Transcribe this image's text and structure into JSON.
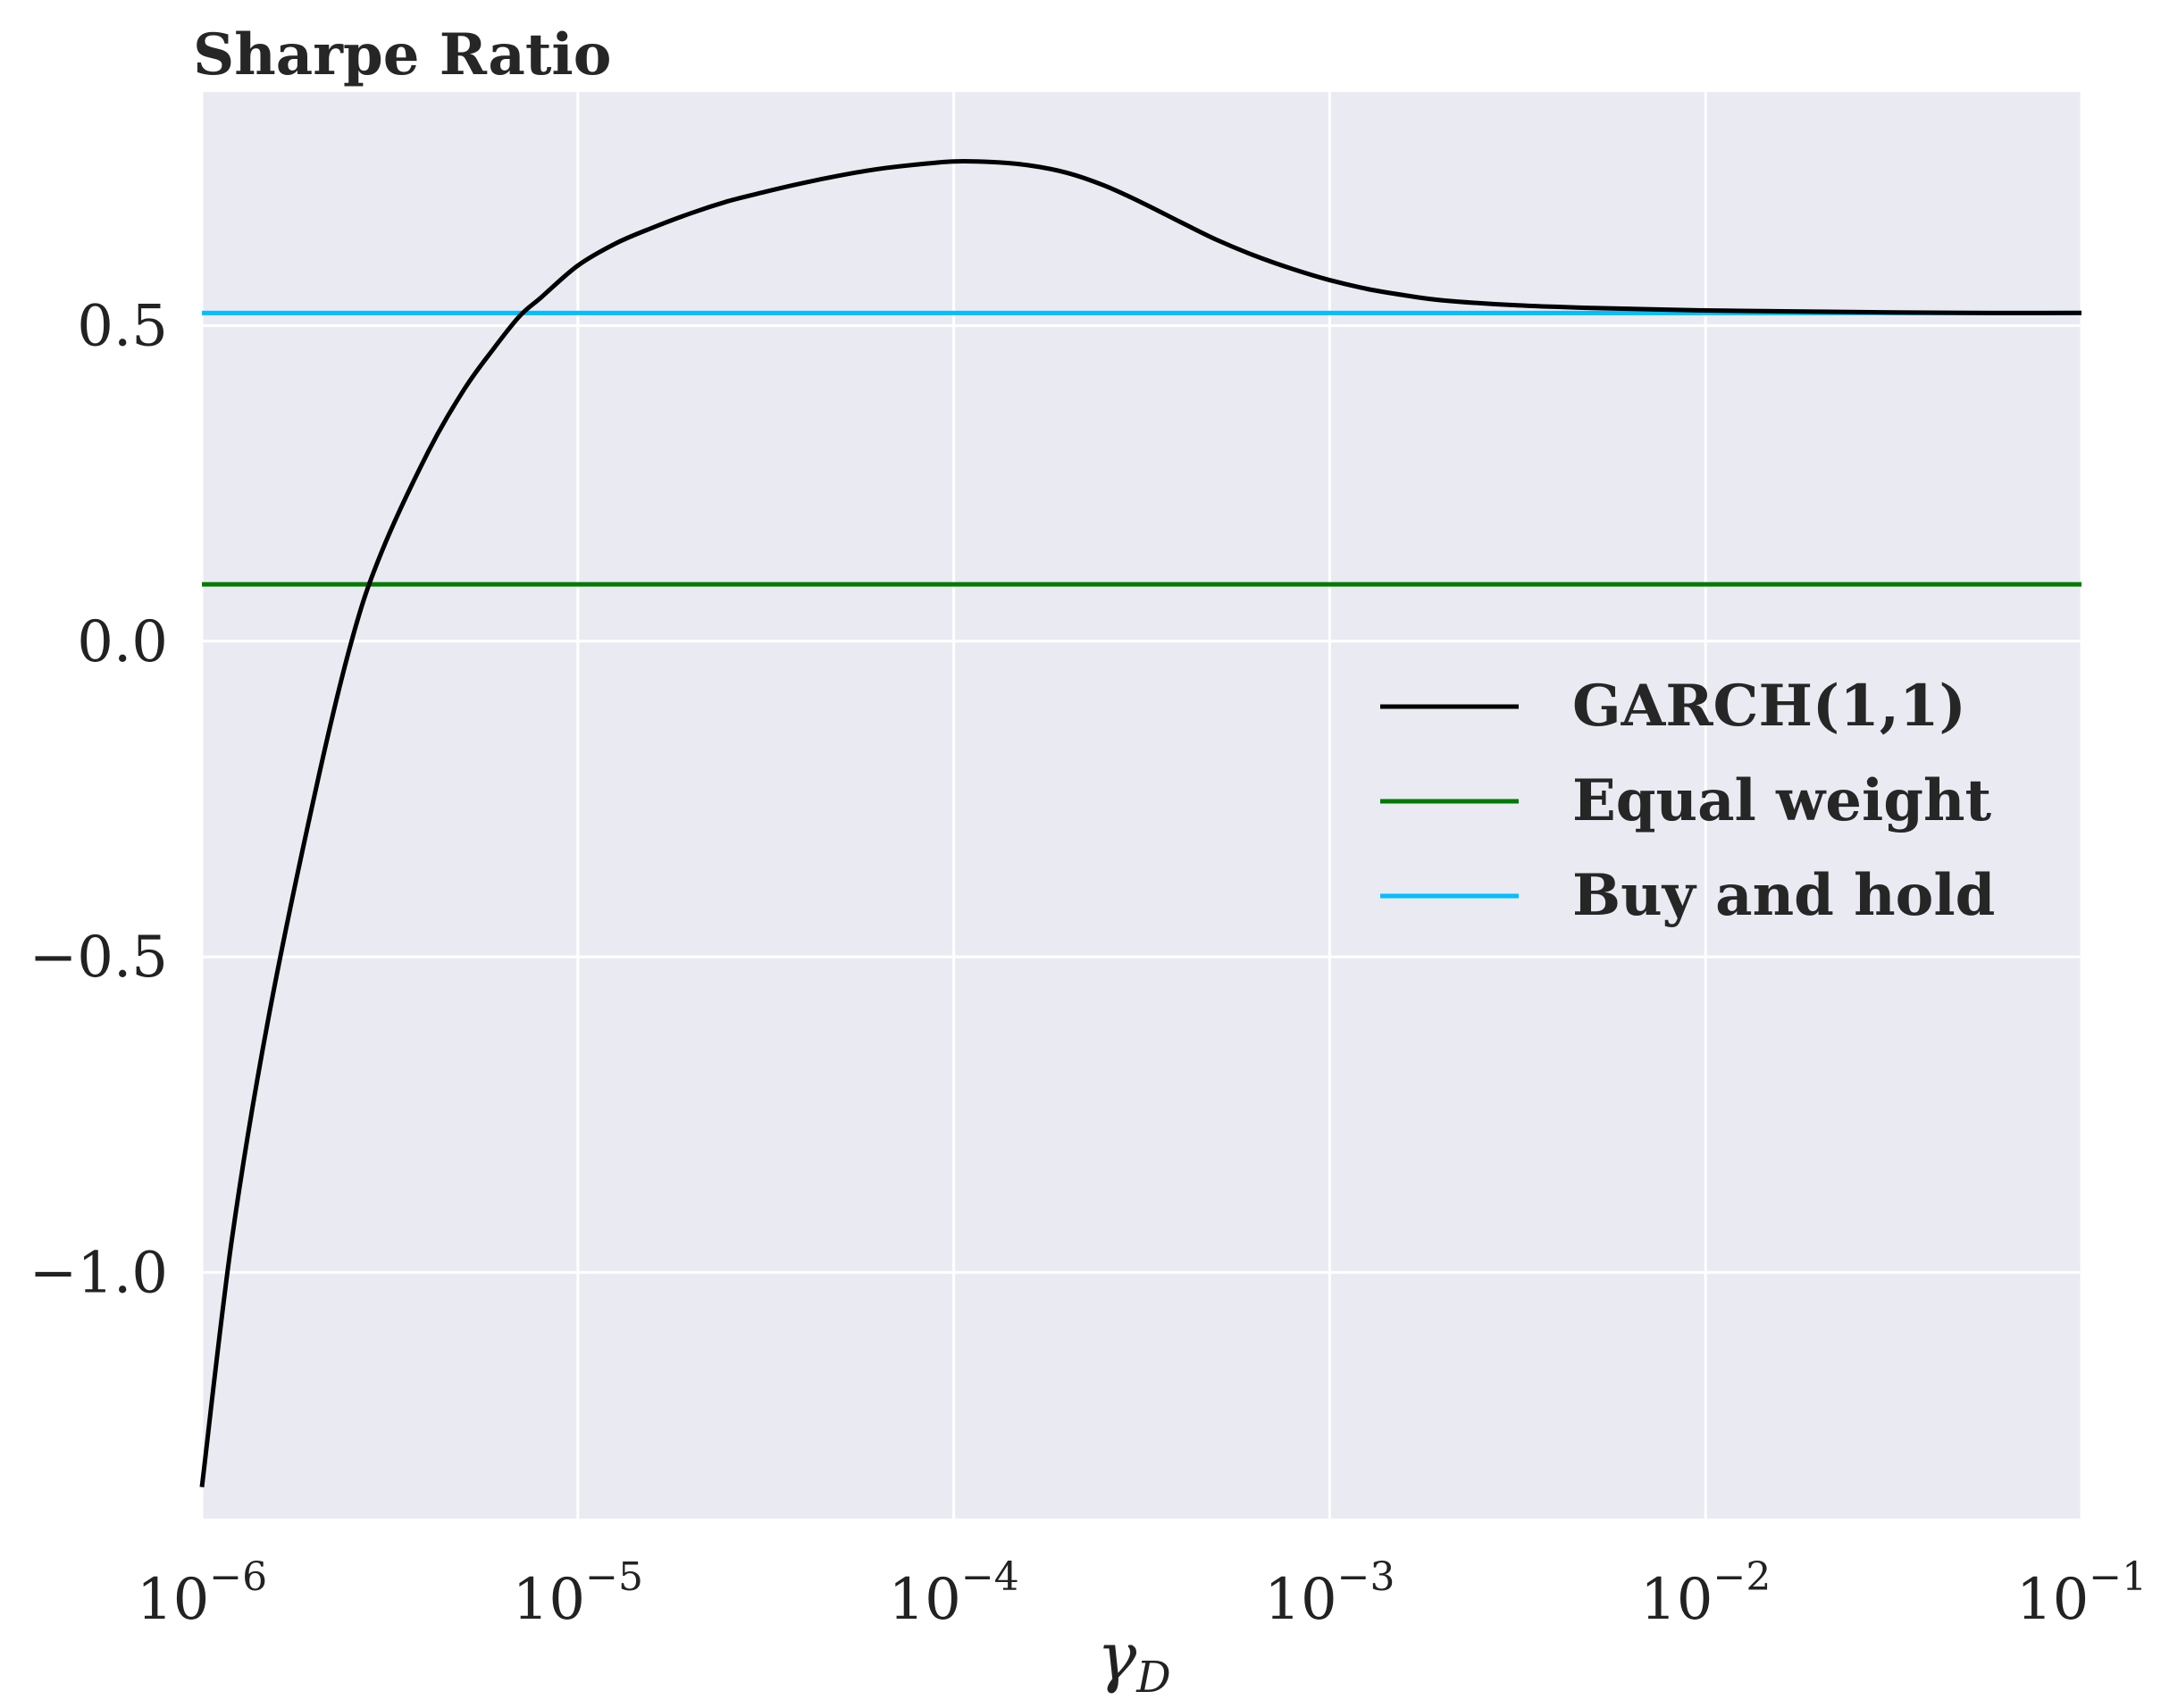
{
  "chart_data": {
    "type": "line",
    "title": "Sharpe Ratio",
    "xlabel": "γ",
    "xlabel_subscript": "D",
    "ylabel": "",
    "x_scale": "log",
    "xlim": [
      1e-06,
      0.1
    ],
    "ylim": [
      -1.39,
      0.87
    ],
    "x_ticks": [
      {
        "value": 1e-06,
        "base": "10",
        "exp": "−6"
      },
      {
        "value": 1e-05,
        "base": "10",
        "exp": "−5"
      },
      {
        "value": 0.0001,
        "base": "10",
        "exp": "−4"
      },
      {
        "value": 0.001,
        "base": "10",
        "exp": "−3"
      },
      {
        "value": 0.01,
        "base": "10",
        "exp": "−2"
      },
      {
        "value": 0.1,
        "base": "10",
        "exp": "−1"
      }
    ],
    "y_ticks": [
      {
        "value": 0.5,
        "label": "0.5"
      },
      {
        "value": 0.0,
        "label": "0.0"
      },
      {
        "value": -0.5,
        "label": "−0.5"
      },
      {
        "value": -1.0,
        "label": "−1.0"
      }
    ],
    "grid": true,
    "legend_position": "center-right",
    "series": [
      {
        "name": "GARCH(1,1)",
        "color": "#000000",
        "kind": "curve",
        "x": [
          1e-06,
          1.2e-06,
          1.5e-06,
          2e-06,
          2.5e-06,
          3e-06,
          4e-06,
          5e-06,
          6e-06,
          7e-06,
          8e-06,
          1e-05,
          1.26e-05,
          1.58e-05,
          2e-05,
          2.51e-05,
          3.16e-05,
          3.98e-05,
          5e-05,
          6.3e-05,
          7.94e-05,
          0.0001,
          0.000126,
          0.000158,
          0.0002,
          0.000251,
          0.000316,
          0.000398,
          0.0005,
          0.00063,
          0.000794,
          0.001,
          0.00126,
          0.00158,
          0.002,
          0.00316,
          0.005,
          0.01,
          0.02,
          0.05,
          0.1
        ],
        "y": [
          -1.34,
          -0.95,
          -0.6,
          -0.24,
          0.0,
          0.14,
          0.3,
          0.4,
          0.465,
          0.515,
          0.545,
          0.595,
          0.63,
          0.655,
          0.678,
          0.697,
          0.712,
          0.726,
          0.738,
          0.748,
          0.755,
          0.76,
          0.759,
          0.754,
          0.742,
          0.722,
          0.695,
          0.665,
          0.636,
          0.611,
          0.59,
          0.572,
          0.558,
          0.548,
          0.54,
          0.532,
          0.528,
          0.524,
          0.522,
          0.52,
          0.52
        ]
      },
      {
        "name": "Equal weight",
        "color": "#007a00",
        "kind": "hline",
        "y": 0.09
      },
      {
        "name": "Buy and hold",
        "color": "#00bfff",
        "kind": "hline",
        "y": 0.52
      }
    ]
  }
}
